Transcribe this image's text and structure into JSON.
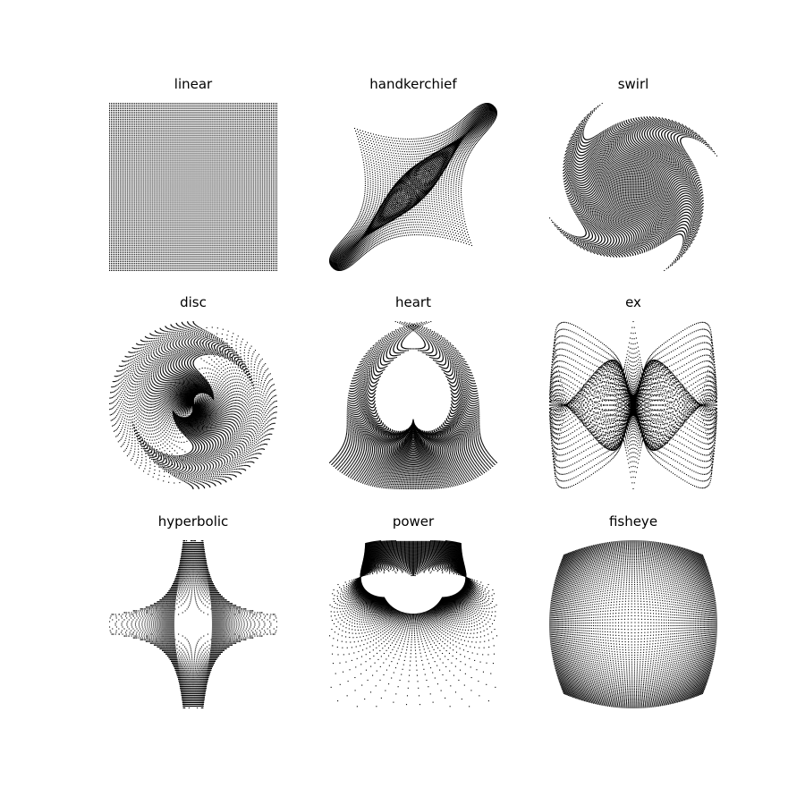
{
  "figure": {
    "background": "#ffffff",
    "dot_color": "#000000"
  },
  "chart_data": [
    {
      "type": "scatter",
      "title": "linear",
      "variation": "linear",
      "grid_points": 94,
      "domain": [
        -1,
        1
      ]
    },
    {
      "type": "scatter",
      "title": "handkerchief",
      "variation": "handkerchief",
      "grid_points": 94,
      "domain": [
        -1,
        1
      ]
    },
    {
      "type": "scatter",
      "title": "swirl",
      "variation": "swirl",
      "grid_points": 94,
      "domain": [
        -1,
        1
      ]
    },
    {
      "type": "scatter",
      "title": "disc",
      "variation": "disc",
      "grid_points": 94,
      "domain": [
        -1,
        1
      ]
    },
    {
      "type": "scatter",
      "title": "heart",
      "variation": "heart",
      "grid_points": 94,
      "domain": [
        -1,
        1
      ]
    },
    {
      "type": "scatter",
      "title": "ex",
      "variation": "ex",
      "grid_points": 94,
      "domain": [
        -1,
        1
      ]
    },
    {
      "type": "scatter",
      "title": "hyperbolic",
      "variation": "hyperbolic",
      "grid_points": 94,
      "domain": [
        -1,
        1
      ]
    },
    {
      "type": "scatter",
      "title": "power",
      "variation": "power",
      "grid_points": 94,
      "domain": [
        -1,
        1
      ]
    },
    {
      "type": "scatter",
      "title": "fisheye",
      "variation": "fisheye",
      "grid_points": 94,
      "domain": [
        -1,
        1
      ]
    }
  ]
}
